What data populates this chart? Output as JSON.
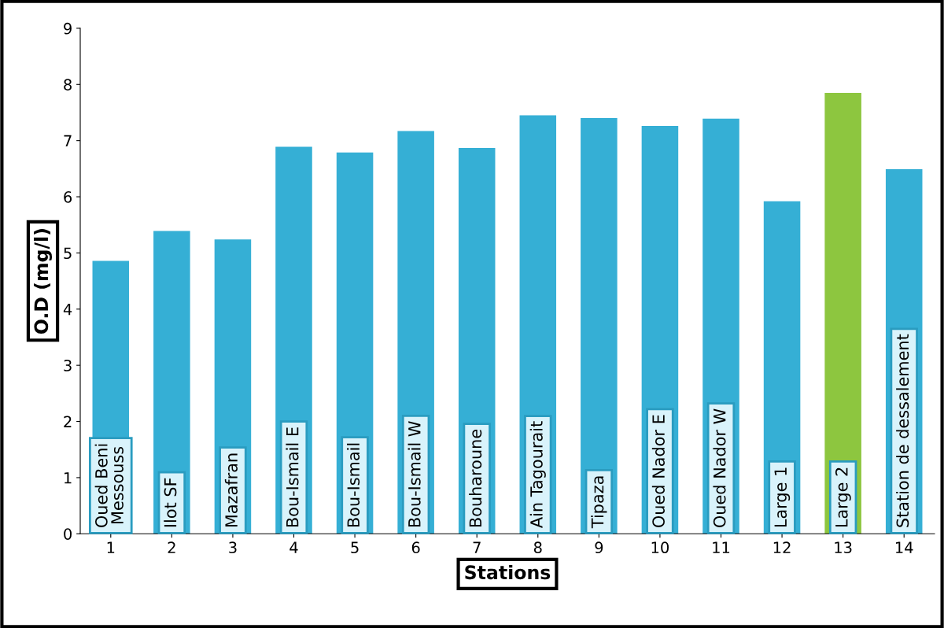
{
  "chart_data": {
    "type": "bar",
    "xlabel": "Stations",
    "ylabel": "O.D (mg/l)",
    "categories": [
      "1",
      "2",
      "3",
      "4",
      "5",
      "6",
      "7",
      "8",
      "9",
      "10",
      "11",
      "12",
      "13",
      "14"
    ],
    "values": [
      4.86,
      5.39,
      5.24,
      6.89,
      6.79,
      7.17,
      6.87,
      7.45,
      7.4,
      7.26,
      7.39,
      5.92,
      7.85,
      6.49
    ],
    "colors": [
      "#35afd5",
      "#35afd5",
      "#35afd5",
      "#35afd5",
      "#35afd5",
      "#35afd5",
      "#35afd5",
      "#35afd5",
      "#35afd5",
      "#35afd5",
      "#35afd5",
      "#35afd5",
      "#8dc63f",
      "#35afd5"
    ],
    "ylim": [
      0,
      9
    ],
    "yticks": [
      0,
      1,
      2,
      3,
      4,
      5,
      6,
      7,
      8,
      9
    ],
    "grid": false,
    "annotations": [
      {
        "text": "Oued Beni\nMessouss",
        "x": "1",
        "y": 0
      },
      {
        "text": "Ilot SF",
        "x": "2",
        "y": 0
      },
      {
        "text": "Mazafran",
        "x": "3",
        "y": 0
      },
      {
        "text": "Bou-Ismail E",
        "x": "4",
        "y": 0
      },
      {
        "text": "Bou-Ismail",
        "x": "5",
        "y": 0
      },
      {
        "text": "Bou-Ismail W",
        "x": "6",
        "y": 0
      },
      {
        "text": "Bouharoune",
        "x": "7",
        "y": 0
      },
      {
        "text": "Ain Tagourait",
        "x": "8",
        "y": 0
      },
      {
        "text": "Tipaza",
        "x": "9",
        "y": 0
      },
      {
        "text": "Oued Nador E",
        "x": "10",
        "y": 0
      },
      {
        "text": "Oued Nador W",
        "x": "11",
        "y": 0
      },
      {
        "text": "Large 1",
        "x": "12",
        "y": 0
      },
      {
        "text": "Large 2",
        "x": "13",
        "y": 0
      },
      {
        "text": "Station de dessalement",
        "x": "14",
        "y": 0
      }
    ]
  }
}
